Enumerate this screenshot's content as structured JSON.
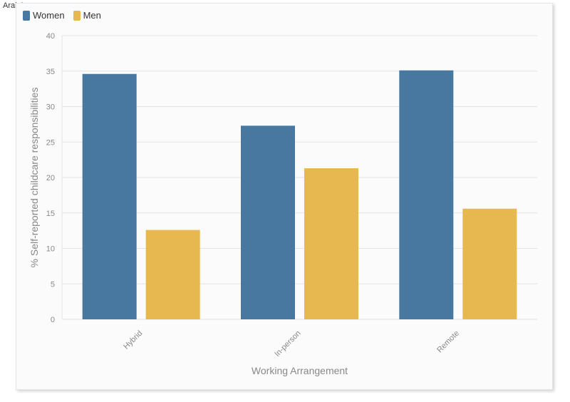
{
  "watermark": "ArabAq.com",
  "chart_data": {
    "type": "bar",
    "categories": [
      "Hybrid",
      "In-person",
      "Remote"
    ],
    "series": [
      {
        "name": "Women",
        "values": [
          34.6,
          27.3,
          35.1
        ],
        "color": "#4878a0"
      },
      {
        "name": "Men",
        "values": [
          12.6,
          21.3,
          15.6
        ],
        "color": "#e7b84f"
      }
    ],
    "xlabel": "Working Arrangement",
    "ylabel": "% Self-reported childcare responsibilities",
    "ylim": [
      0,
      40
    ],
    "yticks": [
      0,
      5,
      10,
      15,
      20,
      25,
      30,
      35,
      40
    ],
    "grid": true,
    "legend_position": "top-left"
  }
}
